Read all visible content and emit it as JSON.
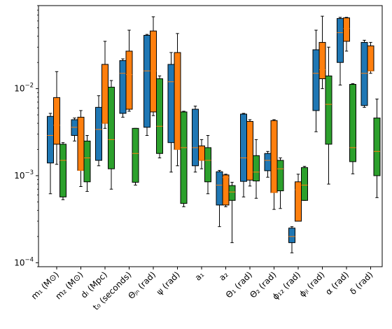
{
  "chart_data": {
    "type": "box",
    "yscale": "log",
    "ylim": [
      9e-05,
      0.09
    ],
    "y_ticks": [
      {
        "value": 0.0001,
        "label": "10",
        "exp": "−4"
      },
      {
        "value": 0.001,
        "label": "10",
        "exp": "−3"
      },
      {
        "value": 0.01,
        "label": "10",
        "exp": "−2"
      }
    ],
    "categories": [
      "m₁ (M⊙)",
      "m₂ (M⊙)",
      "dₗ (Mpc)",
      "t₀ (seconds)",
      "Θⱼₙ (rad)",
      "ψ (rad)",
      "a₁",
      "a₂",
      "Θ₁ (rad)",
      "Θ₂ (rad)",
      "ϕ₁₂ (rad)",
      "ϕⱼₗ (rad)",
      "α (rad)",
      "δ (rad)"
    ],
    "series": [
      {
        "color": "#1f77b4",
        "boxes": [
          {
            "whislo": 0.00062,
            "q1": 0.0014,
            "med": 0.0029,
            "q3": 0.0048,
            "whishi": 0.0052
          },
          {
            "whislo": 0.0025,
            "q1": 0.0029,
            "med": 0.0036,
            "q3": 0.0044,
            "whishi": 0.0046
          },
          {
            "whislo": 0.0013,
            "q1": 0.0015,
            "med": 0.0034,
            "q3": 0.0061,
            "whishi": 0.0083
          },
          {
            "whislo": 0.0047,
            "q1": 0.0052,
            "med": 0.015,
            "q3": 0.021,
            "whishi": 0.022
          },
          {
            "whislo": 0.0029,
            "q1": 0.0036,
            "med": 0.016,
            "q3": 0.041,
            "whishi": 0.042
          },
          {
            "whislo": 0.0011,
            "q1": 0.0024,
            "med": 0.012,
            "q3": 0.019,
            "whishi": 0.026
          },
          {
            "whislo": 0.0011,
            "q1": 0.0013,
            "med": 0.0021,
            "q3": 0.0058,
            "whishi": 0.0063
          },
          {
            "whislo": 0.00026,
            "q1": 0.00046,
            "med": 0.00078,
            "q3": 0.00111,
            "whishi": 0.00115
          },
          {
            "whislo": 0.00057,
            "q1": 0.00086,
            "med": 0.0016,
            "q3": 0.0051,
            "whishi": 0.0052
          },
          {
            "whislo": 0.00096,
            "q1": 0.00114,
            "med": 0.0015,
            "q3": 0.0018,
            "whishi": 0.0019
          },
          {
            "whislo": 0.00013,
            "q1": 0.00017,
            "med": 0.0002,
            "q3": 0.00025,
            "whishi": 0.00026
          },
          {
            "whislo": 0.0032,
            "q1": 0.0056,
            "med": 0.015,
            "q3": 0.028,
            "whishi": 0.047
          },
          {
            "whislo": 0.011,
            "q1": 0.02,
            "med": 0.044,
            "q3": 0.064,
            "whishi": 0.066
          },
          {
            "whislo": 0.0061,
            "q1": 0.0064,
            "med": 0.015,
            "q3": 0.034,
            "whishi": 0.036
          }
        ]
      },
      {
        "color": "#ff7f0e",
        "boxes": [
          {
            "whislo": 0.00135,
            "q1": 0.0023,
            "med": 0.0038,
            "q3": 0.0079,
            "whishi": 0.0157
          },
          {
            "whislo": 0.00075,
            "q1": 0.00115,
            "med": 0.00115,
            "q3": 0.0047,
            "whishi": 0.0056
          },
          {
            "whislo": 0.0035,
            "q1": 0.004,
            "med": 0.004,
            "q3": 0.019,
            "whishi": 0.035
          },
          {
            "whislo": 0.0055,
            "q1": 0.0058,
            "med": 0.0145,
            "q3": 0.027,
            "whishi": 0.047
          },
          {
            "whislo": 0.0049,
            "q1": 0.0054,
            "med": 0.016,
            "q3": 0.046,
            "whishi": 0.067
          },
          {
            "whislo": 0.0013,
            "q1": 0.002,
            "med": 0.002,
            "q3": 0.026,
            "whishi": 0.043
          },
          {
            "whislo": 0.0012,
            "q1": 0.0015,
            "med": 0.0015,
            "q3": 0.0022,
            "whishi": 0.0026
          },
          {
            "whislo": 0.00044,
            "q1": 0.00046,
            "med": 0.00095,
            "q3": 0.00102,
            "whishi": 0.00104
          },
          {
            "whislo": 0.00076,
            "q1": 0.00089,
            "med": 0.0016,
            "q3": 0.0042,
            "whishi": 0.0044
          },
          {
            "whislo": 0.00041,
            "q1": 0.00064,
            "med": 0.00064,
            "q3": 0.0043,
            "whishi": 0.0044
          },
          {
            "whislo": 0.0003,
            "q1": 0.0003,
            "med": 0.00069,
            "q3": 0.00085,
            "whishi": 0.00104
          },
          {
            "whislo": 0.01,
            "q1": 0.013,
            "med": 0.0165,
            "q3": 0.034,
            "whishi": 0.068
          },
          {
            "whislo": 0.027,
            "q1": 0.035,
            "med": 0.049,
            "q3": 0.065,
            "whishi": 0.066
          },
          {
            "whislo": 0.015,
            "q1": 0.016,
            "med": 0.016,
            "q3": 0.031,
            "whishi": 0.034
          }
        ]
      },
      {
        "color": "#2ca02c",
        "boxes": [
          {
            "whislo": 0.00053,
            "q1": 0.00057,
            "med": 0.0015,
            "q3": 0.0023,
            "whishi": 0.0024
          },
          {
            "whislo": 0.00066,
            "q1": 0.00085,
            "med": 0.0016,
            "q3": 0.0025,
            "whishi": 0.0029
          },
          {
            "whislo": 0.0007,
            "q1": 0.0012,
            "med": 0.0026,
            "q3": 0.0104,
            "whishi": 0.0124
          },
          {
            "whislo": 0.00078,
            "q1": 0.00084,
            "med": 0.0018,
            "q3": 0.0035,
            "whishi": 0.0035
          },
          {
            "whislo": 0.0016,
            "q1": 0.0018,
            "med": 0.0037,
            "q3": 0.013,
            "whishi": 0.014
          },
          {
            "whislo": 0.00044,
            "q1": 0.00048,
            "med": 0.0021,
            "q3": 0.0054,
            "whishi": 0.0055
          },
          {
            "whislo": 0.00062,
            "q1": 0.00085,
            "med": 0.0015,
            "q3": 0.0021,
            "whishi": 0.0029
          },
          {
            "whislo": 0.00017,
            "q1": 0.00052,
            "med": 0.00065,
            "q3": 0.00077,
            "whishi": 0.00084
          },
          {
            "whislo": 0.00055,
            "q1": 0.00087,
            "med": 0.0011,
            "q3": 0.0017,
            "whishi": 0.0026
          },
          {
            "whislo": 0.00042,
            "q1": 0.00067,
            "med": 0.0012,
            "q3": 0.0015,
            "whishi": 0.0016
          },
          {
            "whislo": 0.00052,
            "q1": 0.00052,
            "med": 0.00078,
            "q3": 0.00124,
            "whishi": 0.00128
          },
          {
            "whislo": 0.0008,
            "q1": 0.0023,
            "med": 0.0066,
            "q3": 0.014,
            "whishi": 0.03
          },
          {
            "whislo": 0.00105,
            "q1": 0.00145,
            "med": 0.0021,
            "q3": 0.0112,
            "whishi": 0.0114
          },
          {
            "whislo": 0.00056,
            "q1": 0.001,
            "med": 0.0019,
            "q3": 0.0046,
            "whishi": 0.0076
          }
        ]
      }
    ],
    "median_color": "#ff7f0e",
    "legend": "none",
    "grid": false
  }
}
